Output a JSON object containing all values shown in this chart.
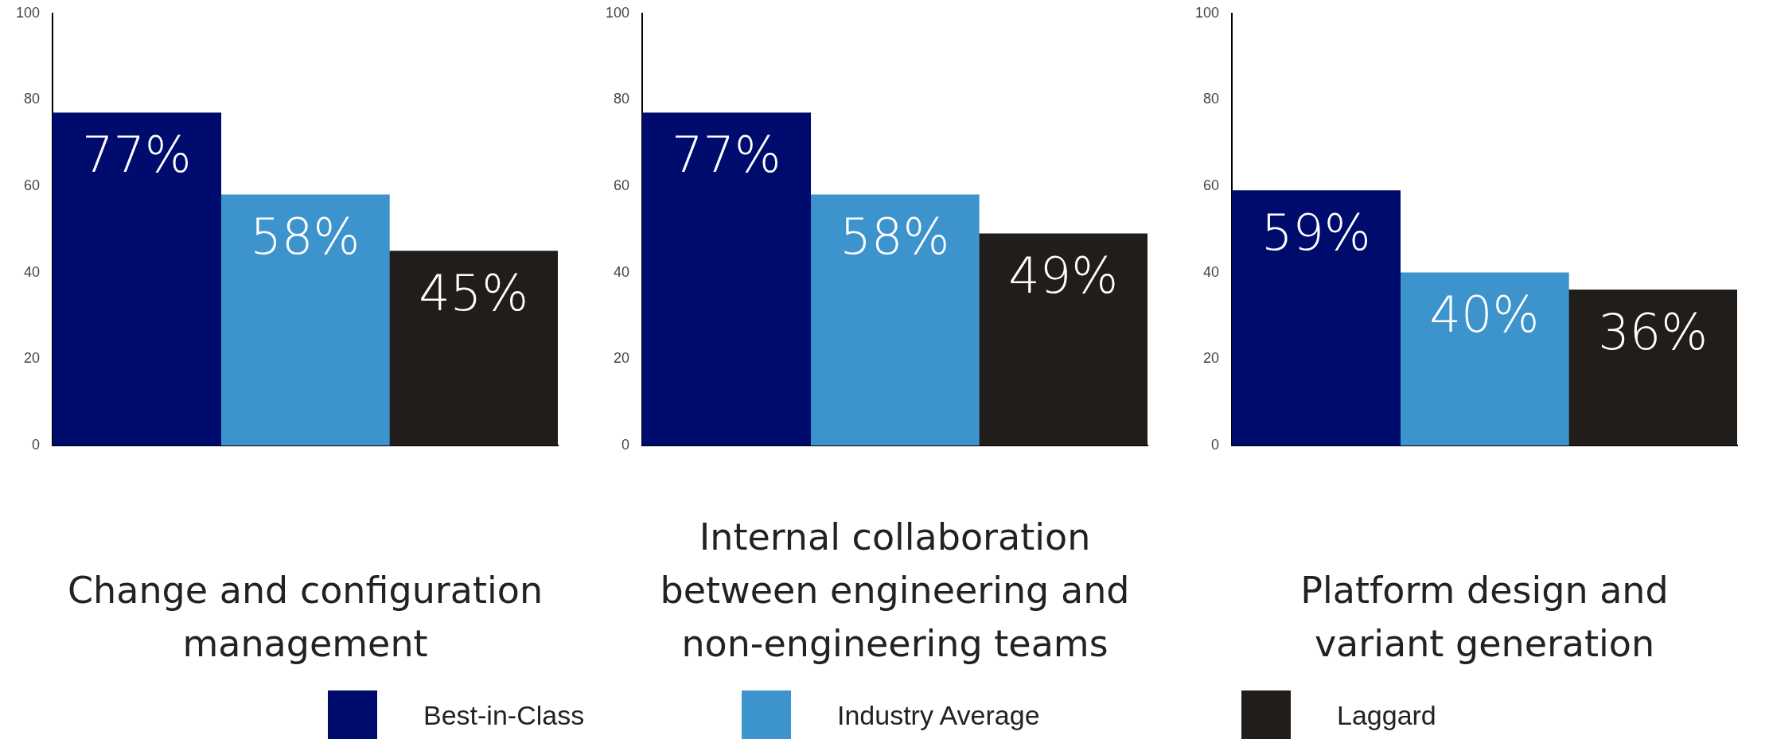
{
  "chart_data": [
    {
      "type": "bar",
      "xlabel": "Change and configuration management",
      "categories": [
        null,
        null,
        null
      ],
      "series": [
        {
          "name": "Best-in-Class",
          "color": "#000b6e",
          "values": [
            77,
            null,
            null
          ],
          "value_labels": [
            "77%",
            null,
            null
          ]
        },
        {
          "name": "Industry Average",
          "color": "#3d93cc",
          "values": [
            null,
            58,
            null
          ],
          "value_labels": [
            null,
            "58%",
            null
          ]
        },
        {
          "name": "Laggard",
          "color": "#201d1b",
          "values": [
            null,
            null,
            45
          ],
          "value_labels": [
            null,
            null,
            "45%"
          ]
        }
      ],
      "ylim": [
        0,
        100
      ],
      "yticks": [
        0,
        20,
        40,
        60,
        80,
        100
      ],
      "legend": "bottom"
    },
    {
      "type": "bar",
      "xlabel": "Internal collaboration between engineering and non-engineering teams",
      "categories": [
        null,
        null,
        null
      ],
      "series": [
        {
          "color": "#000b6e",
          "values": [
            77,
            null,
            null
          ],
          "value_labels": [
            "77%",
            null,
            null
          ]
        },
        {
          "color": "#3d93cc",
          "values": [
            null,
            58,
            null
          ],
          "value_labels": [
            null,
            "58%",
            null
          ]
        },
        {
          "color": "#201d1b",
          "values": [
            null,
            null,
            49
          ],
          "value_labels": [
            null,
            null,
            "49%"
          ]
        }
      ],
      "ylim": [
        0,
        100
      ],
      "yticks": [
        0,
        20,
        40,
        60,
        80,
        100
      ]
    },
    {
      "type": "bar",
      "xlabel": "Platform design and variant generation",
      "categories": [
        null,
        null,
        null
      ],
      "series": [
        {
          "color": "#000b6e",
          "values": [
            59,
            null,
            null
          ],
          "value_labels": [
            "59%",
            null,
            null
          ]
        },
        {
          "color": "#3d93cc",
          "values": [
            null,
            40,
            null
          ],
          "value_labels": [
            null,
            "40%",
            null
          ]
        },
        {
          "color": "#201d1b",
          "values": [
            null,
            null,
            36
          ],
          "value_labels": [
            null,
            null,
            "36%"
          ]
        }
      ],
      "ylim": [
        0,
        100
      ],
      "yticks": [
        0,
        20,
        40,
        60,
        80,
        100
      ]
    }
  ]
}
